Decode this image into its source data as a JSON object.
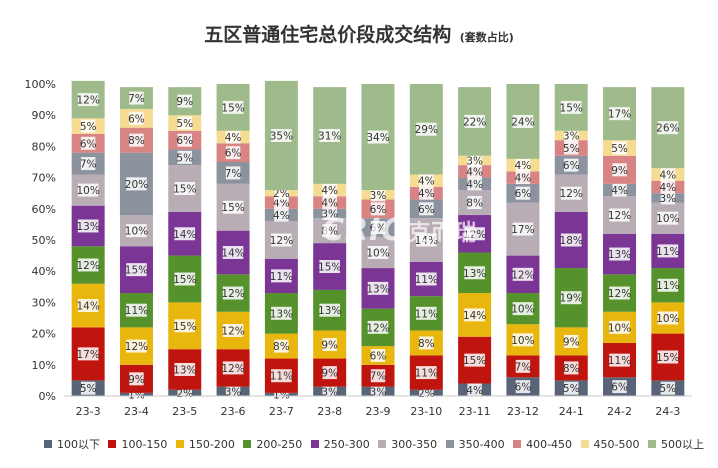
{
  "chart_data": {
    "type": "bar",
    "stacked": true,
    "title": "五区普通住宅总价段成交结构",
    "subtitle": "(套数占比)",
    "categories": [
      "23-3",
      "23-4",
      "23-5",
      "23-6",
      "23-7",
      "23-8",
      "23-9",
      "23-10",
      "23-11",
      "23-12",
      "24-1",
      "24-2",
      "24-3"
    ],
    "ylim": [
      0,
      100
    ],
    "yticks": [
      "0%",
      "10%",
      "20%",
      "30%",
      "40%",
      "50%",
      "60%",
      "70%",
      "80%",
      "90%",
      "100%"
    ],
    "grid": false,
    "legend_position": "bottom",
    "series": [
      {
        "name": "100以下",
        "color": "#5a6478",
        "values": [
          5,
          1,
          2,
          3,
          1,
          3,
          3,
          2,
          4,
          6,
          5,
          6,
          5
        ]
      },
      {
        "name": "100-150",
        "color": "#c0140e",
        "values": [
          17,
          9,
          13,
          12,
          11,
          9,
          7,
          11,
          15,
          7,
          8,
          11,
          15
        ]
      },
      {
        "name": "150-200",
        "color": "#e8b60c",
        "values": [
          14,
          12,
          15,
          12,
          8,
          9,
          6,
          8,
          14,
          10,
          9,
          10,
          10
        ]
      },
      {
        "name": "200-250",
        "color": "#55922c",
        "values": [
          12,
          11,
          15,
          12,
          13,
          13,
          12,
          11,
          13,
          10,
          19,
          12,
          11
        ]
      },
      {
        "name": "250-300",
        "color": "#7a3595",
        "values": [
          13,
          15,
          14,
          14,
          11,
          15,
          13,
          11,
          12,
          12,
          18,
          13,
          11
        ]
      },
      {
        "name": "300-350",
        "color": "#b8adb5",
        "values": [
          10,
          10,
          15,
          15,
          12,
          8,
          10,
          14,
          8,
          17,
          12,
          12,
          10
        ]
      },
      {
        "name": "350-400",
        "color": "#8c929e",
        "values": [
          7,
          20,
          5,
          7,
          4,
          3,
          6,
          6,
          4,
          6,
          6,
          4,
          3
        ]
      },
      {
        "name": "400-450",
        "color": "#d98484",
        "values": [
          6,
          8,
          6,
          6,
          4,
          4,
          6,
          4,
          4,
          4,
          5,
          9,
          4
        ]
      },
      {
        "name": "450-500",
        "color": "#f5dc92",
        "values": [
          5,
          6,
          5,
          4,
          2,
          4,
          3,
          4,
          3,
          4,
          3,
          5,
          4
        ]
      },
      {
        "name": "500以上",
        "color": "#9fbb8c",
        "values": [
          12,
          7,
          9,
          15,
          35,
          31,
          34,
          29,
          22,
          24,
          15,
          17,
          26
        ]
      }
    ],
    "labels": [
      [
        "5%",
        "17%",
        "14%",
        "12%",
        "13%",
        "10%",
        "7%",
        "6%",
        "5%",
        "12%"
      ],
      [
        "1%",
        "9%",
        "12%",
        "11%",
        "15%",
        "10%",
        "20%",
        "8%",
        "6%",
        "7%"
      ],
      [
        "2%",
        "13%",
        "15%",
        "15%",
        "14%",
        "15%",
        "5%",
        "6%",
        "5%",
        "9%"
      ],
      [
        "3%",
        "12%",
        "12%",
        "12%",
        "14%",
        "15%",
        "7%",
        "6%",
        "4%",
        "15%"
      ],
      [
        "1%",
        "11%",
        "8%",
        "13%",
        "11%",
        "12%",
        "4%",
        "4%",
        "2%",
        "35%"
      ],
      [
        "3%",
        "9%",
        "9%",
        "13%",
        "15%",
        "8%",
        "3%",
        "4%",
        "4%",
        "31%"
      ],
      [
        "3%",
        "7%",
        "6%",
        "12%",
        "13%",
        "10%",
        "6%",
        "6%",
        "3%",
        "34%"
      ],
      [
        "2%",
        "11%",
        "8%",
        "11%",
        "11%",
        "14%",
        "6%",
        "4%",
        "4%",
        "29%"
      ],
      [
        "4%",
        "15%",
        "14%",
        "13%",
        "12%",
        "8%",
        "4%",
        "4%",
        "3%",
        "22%"
      ],
      [
        "6%",
        "7%",
        "10%",
        "10%",
        "12%",
        "17%",
        "6%",
        "4%",
        "4%",
        "24%"
      ],
      [
        "5%",
        "8%",
        "9%",
        "19%",
        "18%",
        "12%",
        "6%",
        "5%",
        "3%",
        "15%"
      ],
      [
        "6%",
        "11%",
        "10%",
        "12%",
        "13%",
        "12%",
        "4%",
        "9%",
        "5%",
        "17%"
      ],
      [
        "5%",
        "15%",
        "10%",
        "11%",
        "11%",
        "10%",
        "3%",
        "4%",
        "4%",
        "26%"
      ]
    ]
  },
  "watermark": {
    "latin": "CRIC",
    "chinese": "克而瑞"
  }
}
